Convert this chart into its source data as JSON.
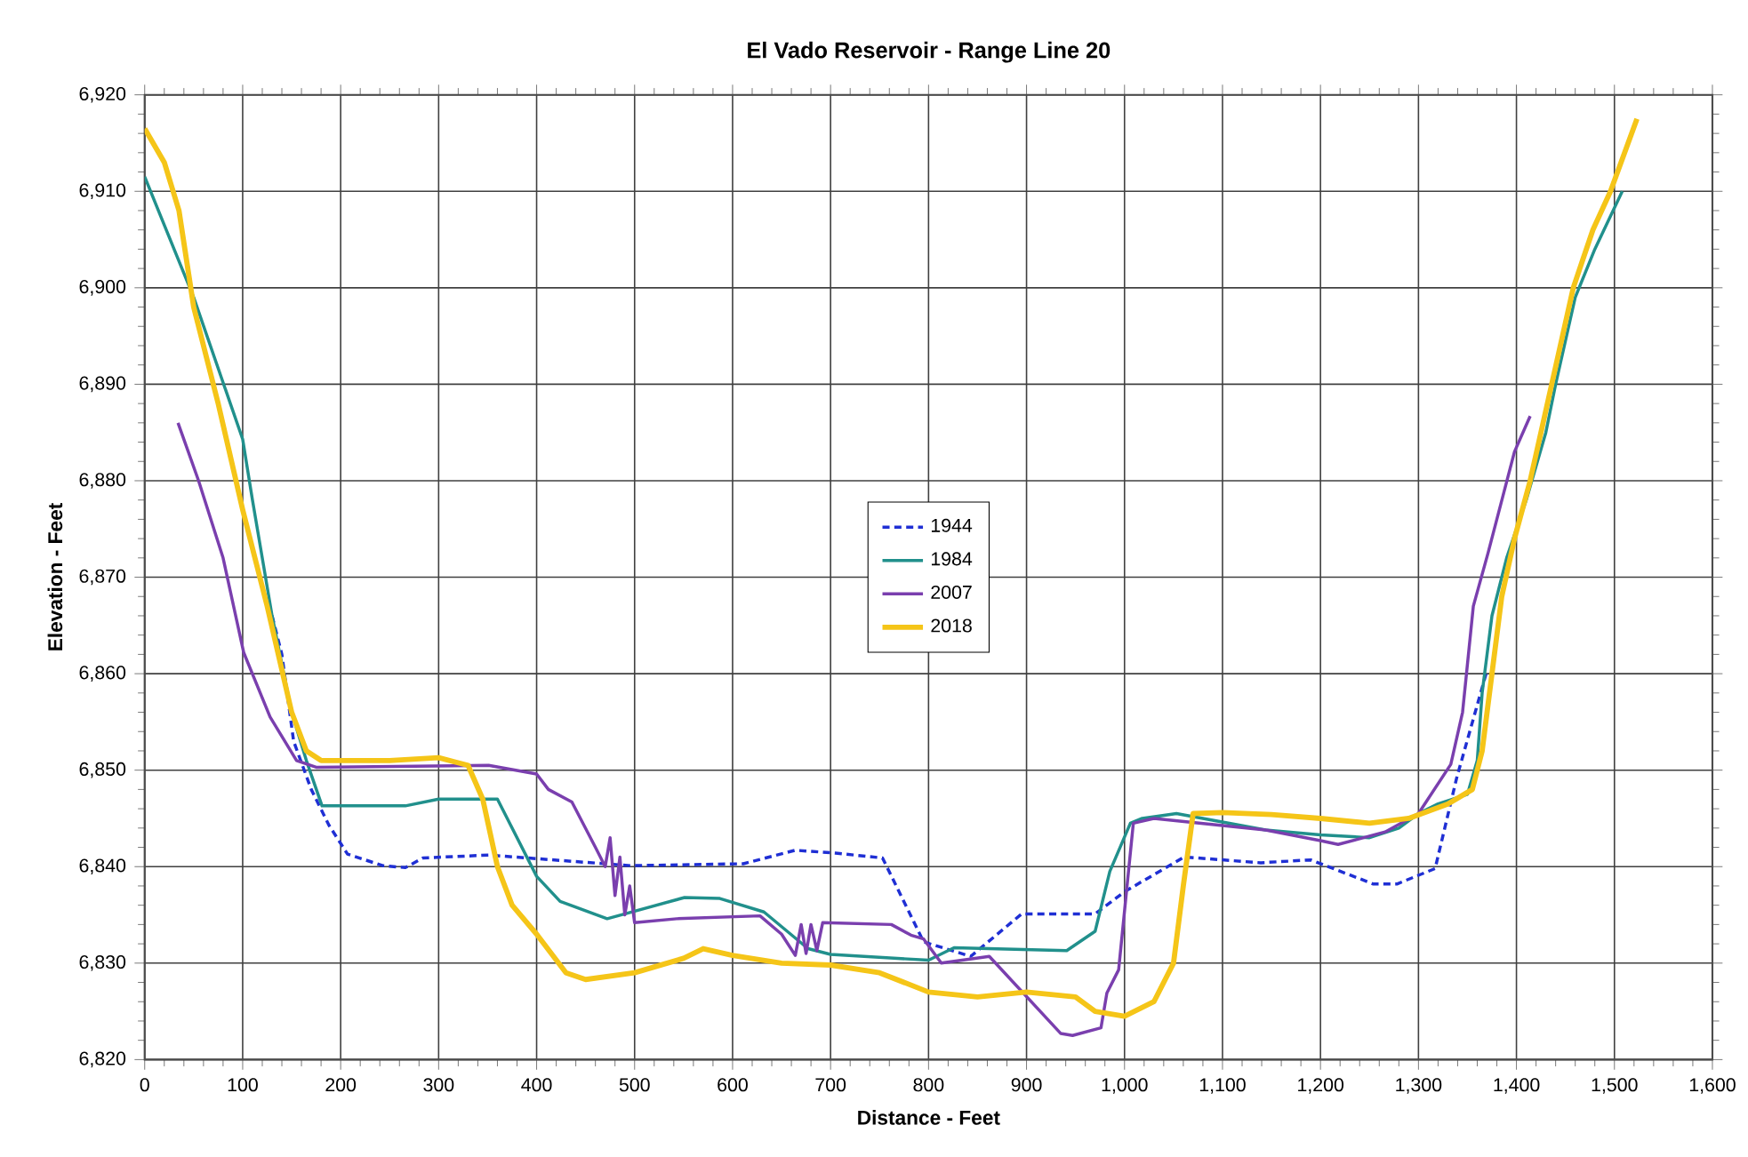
{
  "chart_data": {
    "type": "line",
    "title": "El Vado Reservoir - Range Line 20",
    "xlabel": "Distance - Feet",
    "ylabel": "Elevation - Feet",
    "xlim": [
      0,
      1600
    ],
    "ylim": [
      6820,
      6920
    ],
    "xticks": [
      0,
      100,
      200,
      300,
      400,
      500,
      600,
      700,
      800,
      900,
      {
        "value": 1000,
        "label": "1,000"
      },
      {
        "value": 1100,
        "label": "1,100"
      },
      {
        "value": 1200,
        "label": "1,200"
      },
      {
        "value": 1300,
        "label": "1,300"
      },
      {
        "value": 1400,
        "label": "1,400"
      },
      {
        "value": 1500,
        "label": "1,500"
      },
      {
        "value": 1600,
        "label": "1,600"
      }
    ],
    "yticks": [
      {
        "value": 6820,
        "label": "6,820"
      },
      {
        "value": 6830,
        "label": "6,830"
      },
      {
        "value": 6840,
        "label": "6,840"
      },
      {
        "value": 6850,
        "label": "6,850"
      },
      {
        "value": 6860,
        "label": "6,860"
      },
      {
        "value": 6870,
        "label": "6,870"
      },
      {
        "value": 6880,
        "label": "6,880"
      },
      {
        "value": 6890,
        "label": "6,890"
      },
      {
        "value": 6900,
        "label": "6,900"
      },
      {
        "value": 6910,
        "label": "6,910"
      },
      {
        "value": 6920,
        "label": "6,920"
      }
    ],
    "grid": true,
    "legend": "center",
    "marker": "none",
    "series": [
      {
        "name": "1944",
        "color": "#1f2fd4",
        "line_style": "dashed",
        "x": [
          130,
          140,
          152,
          170,
          188,
          207,
          243,
          266,
          284,
          351,
          496,
          611,
          664,
          705,
          753,
          795,
          843,
          895,
          970,
          1000,
          1061,
          1139,
          1190,
          1254,
          1278,
          1317,
          1339,
          1369
        ],
        "values": [
          6866,
          6862,
          6853,
          6848,
          6844.3,
          6841.3,
          6840.1,
          6839.9,
          6840.9,
          6841.2,
          6840.1,
          6840.3,
          6841.7,
          6841.4,
          6840.9,
          6832.2,
          6830.7,
          6835.1,
          6835.1,
          6837.4,
          6841,
          6840.4,
          6840.7,
          6838.2,
          6838.2,
          6839.8,
          6849.2,
          6860
        ]
      },
      {
        "name": "1984",
        "color": "#21908c",
        "line_style": "solid",
        "x": [
          0,
          50,
          100,
          110,
          130,
          150,
          165,
          181,
          266,
          300,
          360,
          400,
          424,
          472,
          551,
          587,
          632,
          677,
          700,
          800,
          826,
          941,
          970,
          985,
          1006,
          1018,
          1053,
          1144,
          1200,
          1250,
          1280,
          1300,
          1320,
          1350,
          1360,
          1365,
          1375,
          1390,
          1410,
          1430,
          1440,
          1460,
          1480,
          1508
        ],
        "values": [
          6911.5,
          6899,
          6884.3,
          6878,
          6866,
          6856,
          6851,
          6846.3,
          6846.3,
          6847,
          6847,
          6839,
          6836.4,
          6834.6,
          6836.8,
          6836.7,
          6835.3,
          6831.5,
          6830.9,
          6830.3,
          6831.6,
          6831.3,
          6833.3,
          6839.5,
          6844.5,
          6845,
          6845.5,
          6843.8,
          6843.3,
          6843,
          6844,
          6845.5,
          6846.5,
          6847.5,
          6851,
          6858,
          6866,
          6872,
          6878,
          6885,
          6890,
          6899,
          6904,
          6910
        ]
      },
      {
        "name": "2007",
        "color": "#7a3fae",
        "line_style": "solid",
        "x": [
          34,
          55,
          80,
          101,
          128,
          155,
          175,
          351,
          400,
          412,
          436,
          460,
          470,
          475,
          480,
          485,
          490,
          495,
          500,
          543,
          628,
          650,
          664,
          670,
          675,
          680,
          686,
          692,
          762,
          782,
          795,
          813,
          862,
          935,
          947,
          976,
          982,
          994,
          1009,
          1030,
          1144,
          1200,
          1218,
          1266,
          1300,
          1333,
          1345,
          1356,
          1371,
          1398,
          1414
        ],
        "values": [
          6886,
          6880,
          6872,
          6862.2,
          6855.5,
          6851,
          6850.3,
          6850.5,
          6849.6,
          6848,
          6846.7,
          6842,
          6840,
          6843,
          6837,
          6841,
          6835,
          6838,
          6834.2,
          6834.6,
          6834.9,
          6833,
          6830.8,
          6834,
          6831,
          6834,
          6831.3,
          6834.2,
          6834,
          6832.9,
          6832.5,
          6830,
          6830.7,
          6822.7,
          6822.5,
          6823.3,
          6826.9,
          6829.3,
          6844.5,
          6845,
          6843.8,
          6842.7,
          6842.3,
          6843.6,
          6845.5,
          6850.6,
          6856,
          6867,
          6872.5,
          6883,
          6886.7
        ]
      },
      {
        "name": "2018",
        "color": "#f5c518",
        "line_style": "solid",
        "x": [
          0,
          20,
          35,
          50,
          75,
          100,
          125,
          150,
          165,
          180,
          250,
          300,
          330,
          345,
          360,
          375,
          400,
          430,
          450,
          500,
          550,
          570,
          600,
          650,
          700,
          750,
          800,
          850,
          900,
          950,
          970,
          1000,
          1030,
          1050,
          1060,
          1070,
          1100,
          1150,
          1200,
          1250,
          1290,
          1330,
          1355,
          1365,
          1375,
          1385,
          1398,
          1414,
          1436,
          1458,
          1478,
          1496,
          1523
        ],
        "values": [
          6916.5,
          6913,
          6908,
          6898,
          6888,
          6877,
          6867,
          6856,
          6852,
          6851,
          6851,
          6851.3,
          6850.5,
          6847,
          6840,
          6836,
          6833,
          6829,
          6828.3,
          6829,
          6830.5,
          6831.5,
          6830.8,
          6830,
          6829.8,
          6829,
          6827,
          6826.5,
          6827,
          6826.5,
          6825,
          6824.5,
          6826,
          6830,
          6838,
          6845.5,
          6845.6,
          6845.4,
          6845,
          6844.5,
          6845,
          6846.5,
          6848,
          6852,
          6860,
          6868,
          6874,
          6880,
          6890,
          6900,
          6906,
          6910,
          6917.5
        ]
      }
    ]
  }
}
